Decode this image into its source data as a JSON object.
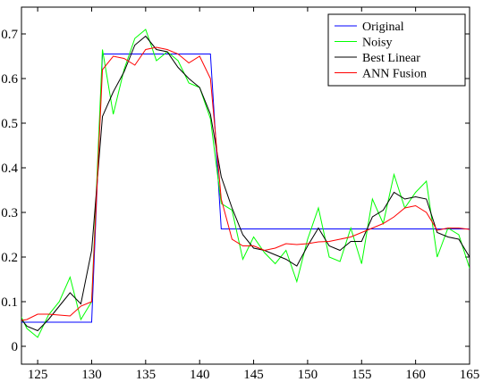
{
  "chart_data": {
    "type": "line",
    "title": "",
    "xlabel": "",
    "ylabel": "",
    "xlim": [
      123.5,
      165
    ],
    "ylim": [
      -0.04,
      0.76
    ],
    "grid": false,
    "legend": "top-right",
    "xticks": [
      125,
      130,
      135,
      140,
      145,
      150,
      155,
      160,
      165
    ],
    "yticks": [
      0,
      0.1,
      0.2,
      0.3,
      0.4,
      0.5,
      0.6,
      0.7
    ],
    "series": [
      {
        "name": "Original",
        "color": "#0000ff",
        "x": [
          123.5,
          130,
          130,
          131,
          141,
          141,
          142,
          165
        ],
        "y": [
          0.054,
          0.054,
          0.054,
          0.655,
          0.655,
          0.655,
          0.263,
          0.263
        ]
      },
      {
        "name": "Noisy",
        "color": "#00ff00",
        "x": [
          123.5,
          124,
          125,
          126,
          127,
          128,
          129,
          130,
          131,
          132,
          133,
          134,
          135,
          136,
          137,
          138,
          139,
          140,
          141,
          142,
          143,
          144,
          145,
          146,
          147,
          148,
          149,
          150,
          151,
          152,
          153,
          154,
          155,
          156,
          157,
          158,
          159,
          160,
          161,
          162,
          163,
          164,
          165
        ],
        "y": [
          0.065,
          0.04,
          0.02,
          0.07,
          0.1,
          0.155,
          0.06,
          0.1,
          0.665,
          0.52,
          0.62,
          0.69,
          0.71,
          0.64,
          0.66,
          0.64,
          0.59,
          0.58,
          0.51,
          0.32,
          0.305,
          0.195,
          0.245,
          0.21,
          0.185,
          0.215,
          0.145,
          0.24,
          0.31,
          0.2,
          0.19,
          0.265,
          0.185,
          0.33,
          0.275,
          0.385,
          0.31,
          0.345,
          0.37,
          0.2,
          0.265,
          0.25,
          0.175
        ]
      },
      {
        "name": "Best Linear",
        "color": "#000000",
        "x": [
          123.5,
          124,
          125,
          126,
          127,
          128,
          129,
          130,
          131,
          132,
          133,
          134,
          135,
          136,
          137,
          138,
          139,
          140,
          141,
          142,
          143,
          144,
          145,
          146,
          147,
          148,
          149,
          150,
          151,
          152,
          153,
          154,
          155,
          156,
          157,
          158,
          159,
          160,
          161,
          162,
          163,
          164,
          165
        ],
        "y": [
          0.06,
          0.045,
          0.035,
          0.06,
          0.09,
          0.12,
          0.095,
          0.215,
          0.515,
          0.57,
          0.615,
          0.675,
          0.695,
          0.665,
          0.66,
          0.625,
          0.6,
          0.58,
          0.52,
          0.38,
          0.31,
          0.25,
          0.22,
          0.215,
          0.205,
          0.195,
          0.18,
          0.225,
          0.265,
          0.225,
          0.215,
          0.235,
          0.235,
          0.29,
          0.305,
          0.345,
          0.33,
          0.335,
          0.33,
          0.255,
          0.245,
          0.24,
          0.2
        ]
      },
      {
        "name": "ANN Fusion",
        "color": "#ff0000",
        "x": [
          123.5,
          124,
          125,
          126,
          127,
          128,
          129,
          130,
          131,
          132,
          133,
          134,
          135,
          136,
          137,
          138,
          139,
          140,
          141,
          142,
          143,
          144,
          145,
          146,
          147,
          148,
          149,
          150,
          151,
          152,
          153,
          154,
          155,
          156,
          157,
          158,
          159,
          160,
          161,
          162,
          163,
          164,
          165
        ],
        "y": [
          0.058,
          0.06,
          0.072,
          0.072,
          0.07,
          0.068,
          0.09,
          0.1,
          0.62,
          0.65,
          0.645,
          0.63,
          0.665,
          0.67,
          0.665,
          0.655,
          0.635,
          0.65,
          0.6,
          0.33,
          0.24,
          0.225,
          0.225,
          0.215,
          0.22,
          0.23,
          0.228,
          0.23,
          0.234,
          0.235,
          0.24,
          0.245,
          0.255,
          0.265,
          0.275,
          0.29,
          0.31,
          0.315,
          0.3,
          0.26,
          0.265,
          0.265,
          0.262
        ]
      }
    ]
  }
}
